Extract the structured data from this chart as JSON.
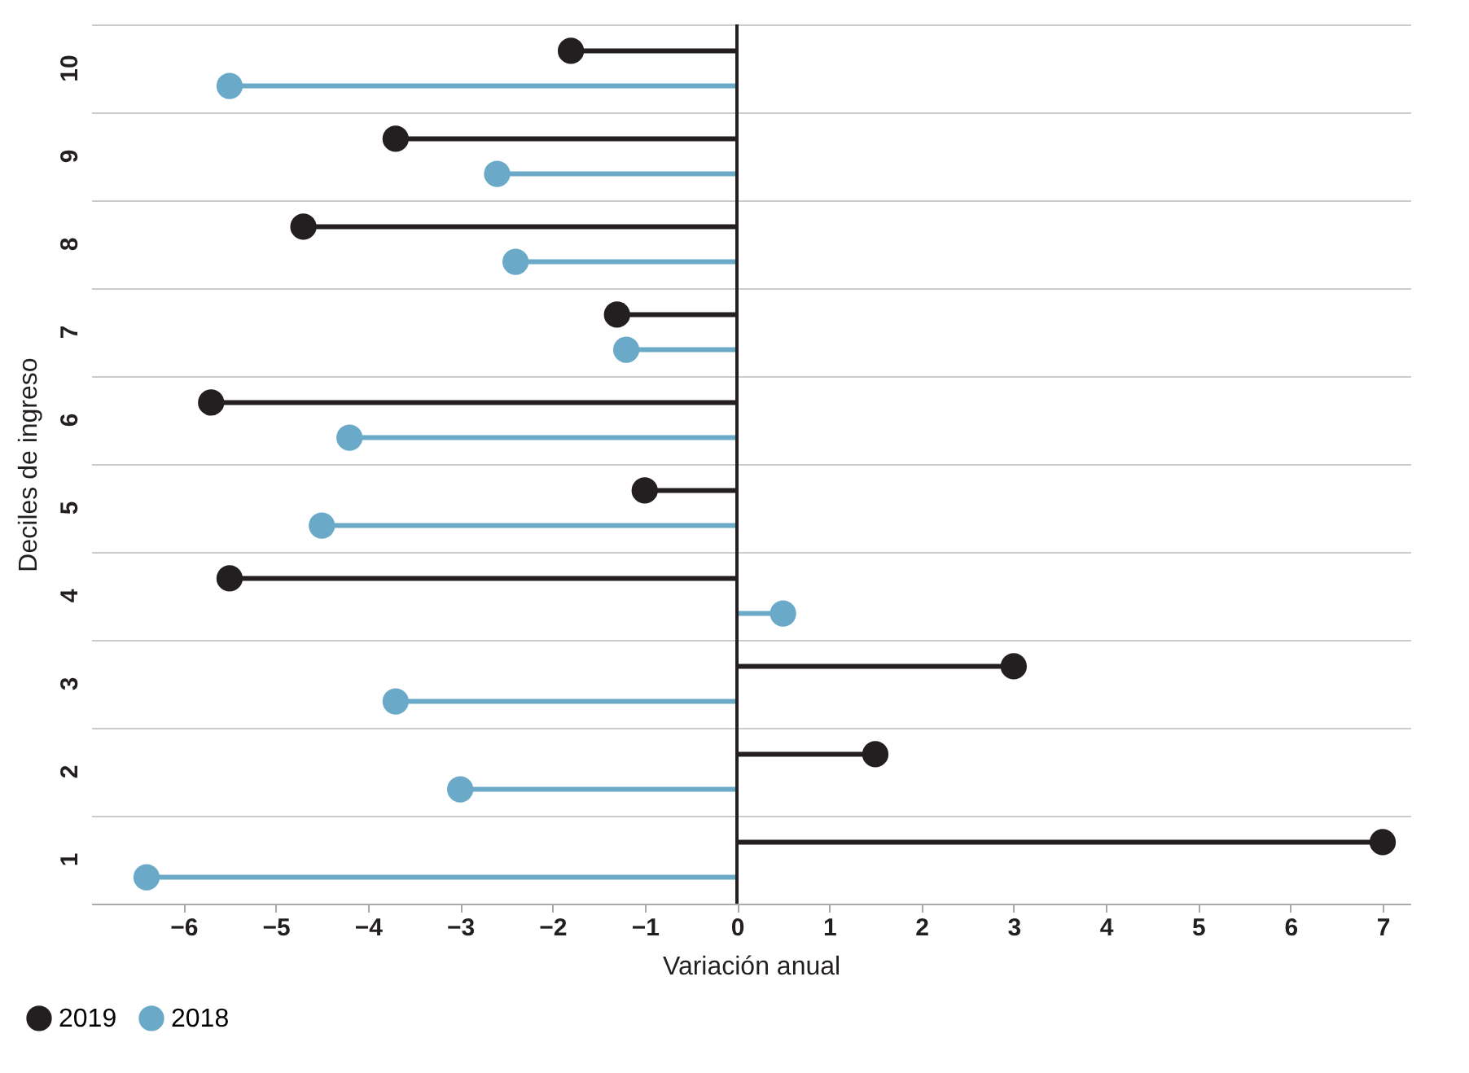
{
  "chart_data": {
    "type": "lollipop",
    "orientation": "horizontal",
    "xlabel": "Variación anual",
    "ylabel": "Deciles de ingreso",
    "categories": [
      "10",
      "9",
      "8",
      "7",
      "6",
      "5",
      "4",
      "3",
      "2",
      "1"
    ],
    "series": [
      {
        "name": "2019",
        "color": "#231f20",
        "values": [
          -1.8,
          -3.7,
          -4.7,
          -1.3,
          -5.7,
          -1.0,
          -5.5,
          3.0,
          1.5,
          7.0
        ]
      },
      {
        "name": "2018",
        "color": "#6aaac8",
        "values": [
          -5.5,
          -2.6,
          -2.4,
          -1.2,
          -4.2,
          -4.5,
          0.5,
          -3.7,
          -3.0,
          -6.4
        ]
      }
    ],
    "xlim": [
      -7,
      7.3
    ],
    "xticks": [
      {
        "value": -6,
        "label": "−6"
      },
      {
        "value": -5,
        "label": "−5"
      },
      {
        "value": -4,
        "label": "−4"
      },
      {
        "value": -3,
        "label": "−3"
      },
      {
        "value": -2,
        "label": "−2"
      },
      {
        "value": -1,
        "label": "−1"
      },
      0,
      1,
      2,
      3,
      4,
      5,
      6,
      7
    ],
    "ref_lines": [
      {
        "axis": "x",
        "value": 0,
        "color": "#231f20"
      }
    ],
    "grid": "y",
    "legend": "bottom left",
    "marker": "circle"
  }
}
